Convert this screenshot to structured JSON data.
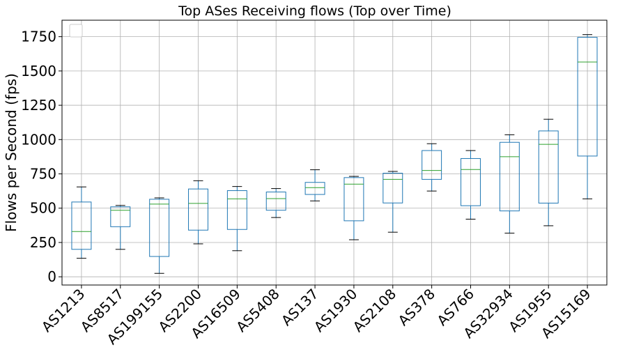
{
  "chart_data": {
    "type": "box",
    "title": "Top ASes Receiving flows (Top over Time)",
    "xlabel": "",
    "ylabel": "Flows per Second (fps)",
    "ylim": [
      -60,
      1870
    ],
    "yticks": [
      "0",
      "250",
      "500",
      "750",
      "1000",
      "1250",
      "1500",
      "1750"
    ],
    "grid": true,
    "legend": "top-left (empty)",
    "colors": {
      "box": "#1f77b4",
      "median": "#2ca02c",
      "whisker": "#1f77b4",
      "cap": "#000000"
    },
    "categories": [
      "AS1213",
      "AS8517",
      "AS199155",
      "AS2200",
      "AS16509",
      "AS5408",
      "AS137",
      "AS1930",
      "AS2108",
      "AS378",
      "AS766",
      "AS32934",
      "AS1955",
      "AS15169"
    ],
    "boxes": [
      {
        "whislo": 135,
        "q1": 200,
        "med": 330,
        "q3": 545,
        "whishi": 655
      },
      {
        "whislo": 200,
        "q1": 365,
        "med": 485,
        "q3": 510,
        "whishi": 520
      },
      {
        "whislo": 25,
        "q1": 148,
        "med": 530,
        "q3": 565,
        "whishi": 575
      },
      {
        "whislo": 240,
        "q1": 340,
        "med": 535,
        "q3": 640,
        "whishi": 700
      },
      {
        "whislo": 190,
        "q1": 345,
        "med": 568,
        "q3": 628,
        "whishi": 658
      },
      {
        "whislo": 432,
        "q1": 485,
        "med": 570,
        "q3": 618,
        "whishi": 643
      },
      {
        "whislo": 553,
        "q1": 600,
        "med": 650,
        "q3": 688,
        "whishi": 780
      },
      {
        "whislo": 270,
        "q1": 408,
        "med": 675,
        "q3": 723,
        "whishi": 732
      },
      {
        "whislo": 325,
        "q1": 538,
        "med": 710,
        "q3": 755,
        "whishi": 768
      },
      {
        "whislo": 625,
        "q1": 710,
        "med": 775,
        "q3": 920,
        "whishi": 970
      },
      {
        "whislo": 420,
        "q1": 518,
        "med": 782,
        "q3": 862,
        "whishi": 920
      },
      {
        "whislo": 318,
        "q1": 480,
        "med": 875,
        "q3": 980,
        "whishi": 1035
      },
      {
        "whislo": 372,
        "q1": 537,
        "med": 965,
        "q3": 1063,
        "whishi": 1148
      },
      {
        "whislo": 568,
        "q1": 880,
        "med": 1565,
        "q3": 1745,
        "whishi": 1765
      }
    ]
  }
}
